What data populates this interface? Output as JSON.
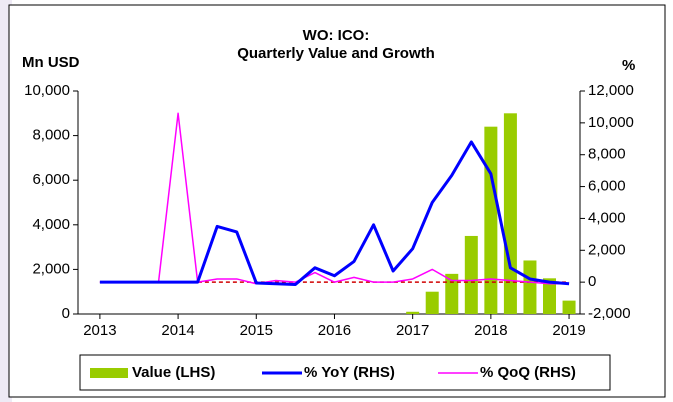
{
  "chart_data": {
    "type": "bar_line",
    "title": [
      "WO: ICO:",
      "Quarterly Value and Growth"
    ],
    "ylabel": "Mn USD",
    "y2label": "%",
    "x": [
      2013,
      2013.25,
      2013.5,
      2013.75,
      2014,
      2014.25,
      2014.5,
      2014.75,
      2015,
      2015.25,
      2015.5,
      2015.75,
      2016,
      2016.25,
      2016.5,
      2016.75,
      2017,
      2017.25,
      2017.5,
      2017.75,
      2018,
      2018.25,
      2018.5,
      2018.75,
      2019
    ],
    "xlim": [
      2012.72,
      2019.14
    ],
    "xticks": [
      2013,
      2014,
      2015,
      2016,
      2017,
      2018,
      2019
    ],
    "ylim": [
      0,
      10000
    ],
    "yticks": [
      0,
      {
        "value": 2000,
        "label": "2,000"
      },
      {
        "value": 4000,
        "label": "4,000"
      },
      {
        "value": 6000,
        "label": "6,000"
      },
      {
        "value": 8000,
        "label": "8,000"
      },
      {
        "value": 10000,
        "label": "10,000"
      }
    ],
    "y2lim": [
      -2000,
      12000
    ],
    "y2ticks": [
      {
        "value": -2000,
        "label": "-2,000"
      },
      0,
      {
        "value": 2000,
        "label": "2,000"
      },
      {
        "value": 4000,
        "label": "4,000"
      },
      {
        "value": 6000,
        "label": "6,000"
      },
      {
        "value": 8000,
        "label": "8,000"
      },
      {
        "value": 10000,
        "label": "10,000"
      },
      {
        "value": 12000,
        "label": "12,000"
      }
    ],
    "y2_reference_line": 0,
    "reference_color": "#d00000",
    "series": [
      {
        "name": "Value (LHS)",
        "kind": "bar",
        "color": "#99cc00",
        "values": [
          null,
          null,
          null,
          null,
          null,
          null,
          null,
          null,
          null,
          null,
          null,
          null,
          null,
          null,
          null,
          null,
          100,
          1000,
          1800,
          3500,
          8400,
          9000,
          2400,
          1600,
          600
        ]
      },
      {
        "name": "% YoY (RHS)",
        "kind": "line",
        "axis": "y2",
        "color": "#0000ff",
        "values": [
          0,
          0,
          0,
          0,
          0,
          0,
          3500,
          3150,
          -50,
          -100,
          -150,
          900,
          400,
          1300,
          3600,
          700,
          2100,
          5000,
          6700,
          8800,
          6800,
          900,
          200,
          0,
          -100
        ]
      },
      {
        "name": "% QoQ (RHS)",
        "kind": "line",
        "axis": "y2",
        "color": "#ff00ff",
        "values": [
          0,
          0,
          0,
          0,
          10600,
          0,
          200,
          200,
          -100,
          100,
          0,
          600,
          0,
          300,
          0,
          0,
          200,
          800,
          100,
          100,
          200,
          100,
          0,
          -100,
          -100
        ]
      }
    ]
  }
}
